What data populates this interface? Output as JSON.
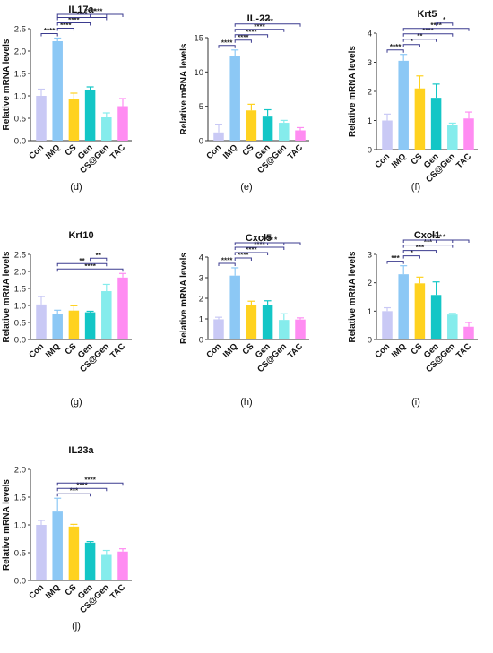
{
  "figure": {
    "ylabel": "Relative mRNA levels",
    "categories": [
      "Con",
      "IMQ",
      "CS",
      "Gen",
      "CS@Gen",
      "TAC"
    ],
    "series_colors": [
      "#c9c9f5",
      "#8cc8f5",
      "#ffd21f",
      "#13c6c6",
      "#85ecec",
      "#ff8cf2"
    ]
  },
  "chart_data": [
    {
      "type": "bar",
      "title": "IL17a",
      "panel_label": "(d)",
      "categories": [
        "Con",
        "IMQ",
        "CS",
        "Gen",
        "CS@Gen",
        "TAC"
      ],
      "values": [
        1.0,
        2.22,
        0.92,
        1.12,
        0.52,
        0.77
      ],
      "errors": [
        0.15,
        0.07,
        0.14,
        0.08,
        0.1,
        0.17
      ],
      "ylim": [
        0,
        2.5
      ],
      "yticks": [
        0.0,
        0.5,
        1.0,
        1.5,
        2.0,
        2.5
      ],
      "tick_decimals": 1,
      "significance": [
        {
          "from": 0,
          "to": 1,
          "label": "****"
        },
        {
          "from": 1,
          "to": 2,
          "label": "****"
        },
        {
          "from": 1,
          "to": 3,
          "label": "****"
        },
        {
          "from": 1,
          "to": 4,
          "label": "****"
        },
        {
          "from": 1,
          "to": 5,
          "label": "****"
        },
        {
          "from": 3,
          "to": 4,
          "label": "***"
        }
      ]
    },
    {
      "type": "bar",
      "title": "IL-22",
      "panel_label": "(e)",
      "categories": [
        "Con",
        "IMQ",
        "CS",
        "Gen",
        "CS@Gen",
        "TAC"
      ],
      "values": [
        1.2,
        12.3,
        4.4,
        3.5,
        2.6,
        1.5
      ],
      "errors": [
        1.2,
        0.9,
        0.9,
        1.0,
        0.35,
        0.4
      ],
      "ylim": [
        0,
        15
      ],
      "yticks": [
        0,
        5,
        10,
        15
      ],
      "tick_decimals": 0,
      "significance": [
        {
          "from": 0,
          "to": 1,
          "label": "****"
        },
        {
          "from": 1,
          "to": 2,
          "label": "****"
        },
        {
          "from": 1,
          "to": 3,
          "label": "****"
        },
        {
          "from": 1,
          "to": 4,
          "label": "****"
        },
        {
          "from": 1,
          "to": 5,
          "label": "****"
        }
      ]
    },
    {
      "type": "bar",
      "title": "Krt5",
      "panel_label": "(f)",
      "categories": [
        "Con",
        "IMQ",
        "CS",
        "Gen",
        "CS@Gen",
        "TAC"
      ],
      "values": [
        1.0,
        3.05,
        2.1,
        1.78,
        0.85,
        1.07
      ],
      "errors": [
        0.22,
        0.22,
        0.43,
        0.47,
        0.06,
        0.22
      ],
      "ylim": [
        0,
        4
      ],
      "yticks": [
        0,
        1,
        2,
        3,
        4
      ],
      "tick_decimals": 0,
      "significance": [
        {
          "from": 0,
          "to": 1,
          "label": "****"
        },
        {
          "from": 1,
          "to": 2,
          "label": "*"
        },
        {
          "from": 1,
          "to": 3,
          "label": "**"
        },
        {
          "from": 1,
          "to": 4,
          "label": "****"
        },
        {
          "from": 1,
          "to": 5,
          "label": "****"
        },
        {
          "from": 3,
          "to": 4,
          "label": "*"
        }
      ]
    },
    {
      "type": "bar",
      "title": "Krt10",
      "panel_label": "(g)",
      "categories": [
        "Con",
        "IMQ",
        "CS",
        "Gen",
        "CS@Gen",
        "TAC"
      ],
      "values": [
        1.03,
        0.74,
        0.85,
        0.8,
        1.42,
        1.82
      ],
      "errors": [
        0.23,
        0.12,
        0.14,
        0.03,
        0.2,
        0.12
      ],
      "ylim": [
        0,
        2.5
      ],
      "yticks": [
        0.0,
        0.5,
        1.0,
        1.5,
        2.0,
        2.5
      ],
      "tick_decimals": 1,
      "significance": [
        {
          "from": 1,
          "to": 5,
          "label": "****"
        },
        {
          "from": 1,
          "to": 4,
          "label": "**"
        },
        {
          "from": 3,
          "to": 4,
          "label": "**"
        }
      ]
    },
    {
      "type": "bar",
      "title": "Cxcl5",
      "panel_label": "(h)",
      "categories": [
        "Con",
        "IMQ",
        "CS",
        "Gen",
        "CS@Gen",
        "TAC"
      ],
      "values": [
        0.98,
        3.1,
        1.68,
        1.68,
        0.95,
        0.97
      ],
      "errors": [
        0.1,
        0.38,
        0.18,
        0.2,
        0.3,
        0.08
      ],
      "ylim": [
        0,
        4
      ],
      "yticks": [
        0,
        1,
        2,
        3,
        4
      ],
      "tick_decimals": 0,
      "significance": [
        {
          "from": 0,
          "to": 1,
          "label": "****"
        },
        {
          "from": 1,
          "to": 2,
          "label": "****"
        },
        {
          "from": 1,
          "to": 3,
          "label": "****"
        },
        {
          "from": 1,
          "to": 4,
          "label": "****"
        },
        {
          "from": 1,
          "to": 5,
          "label": "****"
        },
        {
          "from": 3,
          "to": 4,
          "label": "*"
        }
      ]
    },
    {
      "type": "bar",
      "title": "Cxcl1",
      "panel_label": "(i)",
      "categories": [
        "Con",
        "IMQ",
        "CS",
        "Gen",
        "CS@Gen",
        "TAC"
      ],
      "values": [
        1.0,
        2.3,
        1.98,
        1.57,
        0.88,
        0.45
      ],
      "errors": [
        0.12,
        0.3,
        0.22,
        0.46,
        0.04,
        0.15
      ],
      "ylim": [
        0,
        3
      ],
      "yticks": [
        0,
        1,
        2,
        3
      ],
      "tick_decimals": 0,
      "significance": [
        {
          "from": 0,
          "to": 1,
          "label": "***"
        },
        {
          "from": 1,
          "to": 2,
          "label": "*"
        },
        {
          "from": 1,
          "to": 3,
          "label": "***"
        },
        {
          "from": 1,
          "to": 4,
          "label": "***"
        },
        {
          "from": 1,
          "to": 5,
          "label": "****"
        },
        {
          "from": 3,
          "to": 4,
          "label": "*"
        }
      ]
    },
    {
      "type": "bar",
      "title": "IL23a",
      "panel_label": "(j)",
      "categories": [
        "Con",
        "IMQ",
        "CS",
        "Gen",
        "CS@Gen",
        "TAC"
      ],
      "values": [
        1.0,
        1.24,
        0.97,
        0.68,
        0.46,
        0.52
      ],
      "errors": [
        0.08,
        0.24,
        0.04,
        0.02,
        0.08,
        0.05
      ],
      "ylim": [
        0,
        2.0
      ],
      "yticks": [
        0.0,
        0.5,
        1.0,
        1.5,
        2.0
      ],
      "tick_decimals": 1,
      "significance": [
        {
          "from": 1,
          "to": 3,
          "label": "***"
        },
        {
          "from": 1,
          "to": 4,
          "label": "****"
        },
        {
          "from": 1,
          "to": 5,
          "label": "****"
        }
      ]
    }
  ]
}
